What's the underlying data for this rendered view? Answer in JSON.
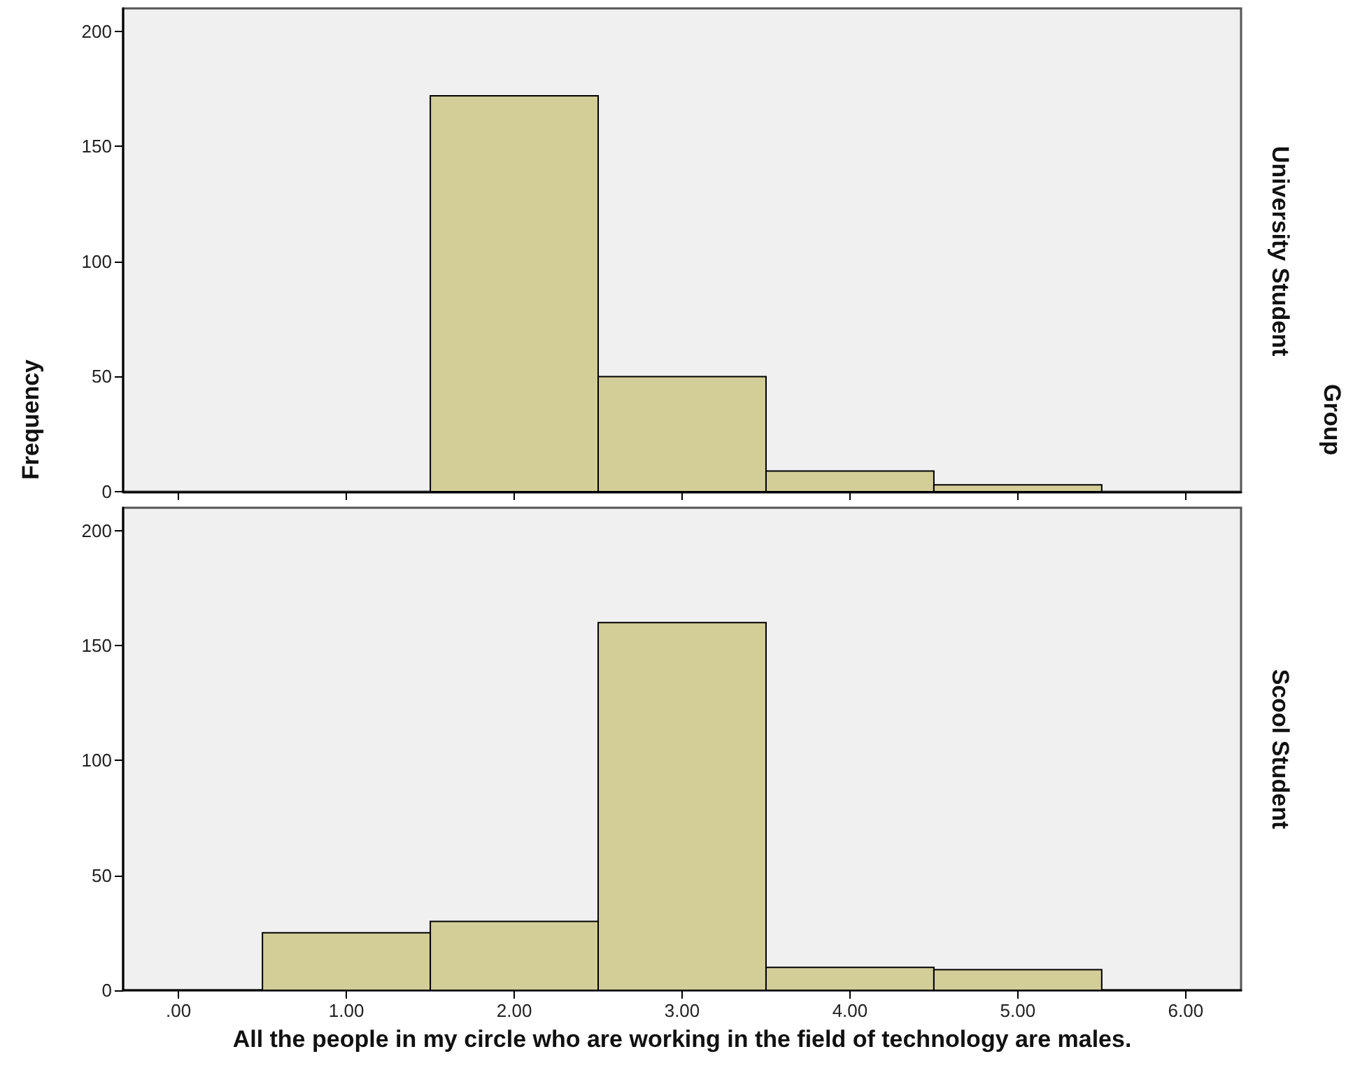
{
  "chart_data": [
    {
      "type": "histogram",
      "ylabel": "Frequency",
      "annotations": [
        "University Student",
        "Group"
      ],
      "bins": [
        1.5,
        2.5,
        3.5,
        4.5,
        5.5
      ],
      "values": [
        172,
        50,
        9,
        3
      ],
      "color": "#d3cd98",
      "xlim": [
        -0.33,
        6.33
      ],
      "xticks": [
        0,
        1,
        2,
        3,
        4,
        5,
        6
      ],
      "ylim": [
        0,
        210
      ],
      "yticks": [
        0,
        50,
        100,
        150,
        200
      ],
      "tick_labels": "y",
      "grid": false
    },
    {
      "type": "histogram",
      "annotations": [
        "Scool Student"
      ],
      "xlabel": "All the people in my circle who are working in the field of technology are males.",
      "bins": [
        0.5,
        1.5,
        2.5,
        3.5,
        4.5,
        5.5
      ],
      "values": [
        25,
        30,
        160,
        10,
        9
      ],
      "color": "#d3cd98",
      "xlim": [
        -0.33,
        6.33
      ],
      "xticks": [
        {
          "value": 0,
          "label": ".00"
        },
        {
          "value": 1,
          "label": "1.00"
        },
        {
          "value": 2,
          "label": "2.00"
        },
        {
          "value": 3,
          "label": "3.00"
        },
        {
          "value": 4,
          "label": "4.00"
        },
        {
          "value": 5,
          "label": "5.00"
        },
        {
          "value": 6,
          "label": "6.00"
        }
      ],
      "ylim": [
        0,
        210
      ],
      "yticks": [
        0,
        50,
        100,
        150,
        200
      ],
      "grid": false
    }
  ]
}
